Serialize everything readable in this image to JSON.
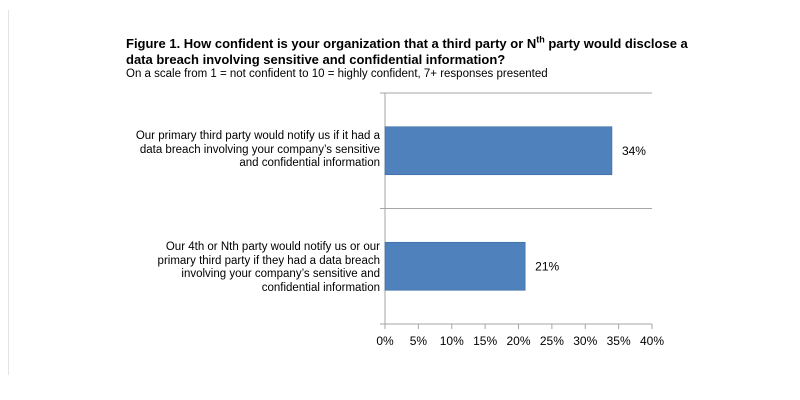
{
  "chart_data": {
    "type": "bar",
    "orientation": "horizontal",
    "title_prefix": "Figure 1. How confident is your organization that a third party or N",
    "title_sup": "th",
    "title_suffix": " party would disclose a data breach involving sensitive and confidential information?",
    "subtitle": "On a scale from 1 = not confident to 10 = highly confident, 7+ responses presented",
    "categories": [
      "Our primary third party would notify us if it had a data breach involving your company’s sensitive and confidential information",
      "Our 4th or Nth party would notify us or our primary third party if they had a data breach involving your company’s sensitive and confidential information"
    ],
    "values": [
      34,
      21
    ],
    "value_labels": [
      "34%",
      "21%"
    ],
    "xlim": [
      0,
      40
    ],
    "xticks": [
      "0%",
      "5%",
      "10%",
      "15%",
      "20%",
      "25%",
      "30%",
      "35%",
      "40%"
    ],
    "xlabel": "",
    "ylabel": "",
    "grid": false,
    "legend": "none",
    "bar_color": "#4f81bd"
  }
}
